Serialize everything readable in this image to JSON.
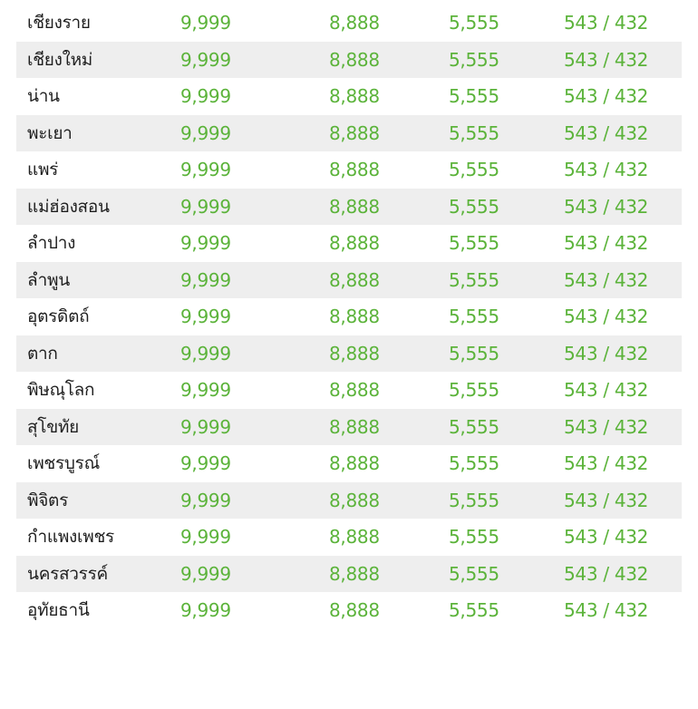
{
  "colors": {
    "name_text": "#1f1f1f",
    "number_text": "#5bb33a",
    "row_shade": "#eeeeee",
    "background": "#ffffff"
  },
  "rows": [
    {
      "name": "เชียงราย",
      "v1": "9,999",
      "v2": "8,888",
      "v3": "5,555",
      "v4": "543 / 432"
    },
    {
      "name": "เชียงใหม่",
      "v1": "9,999",
      "v2": "8,888",
      "v3": "5,555",
      "v4": "543 / 432"
    },
    {
      "name": "น่าน",
      "v1": "9,999",
      "v2": "8,888",
      "v3": "5,555",
      "v4": "543 / 432"
    },
    {
      "name": "พะเยา",
      "v1": "9,999",
      "v2": "8,888",
      "v3": "5,555",
      "v4": "543 / 432"
    },
    {
      "name": "แพร่",
      "v1": "9,999",
      "v2": "8,888",
      "v3": "5,555",
      "v4": "543 / 432"
    },
    {
      "name": "แม่ฮ่องสอน",
      "v1": "9,999",
      "v2": "8,888",
      "v3": "5,555",
      "v4": "543 / 432"
    },
    {
      "name": "ลำปาง",
      "v1": "9,999",
      "v2": "8,888",
      "v3": "5,555",
      "v4": "543 / 432"
    },
    {
      "name": "ลำพูน",
      "v1": "9,999",
      "v2": "8,888",
      "v3": "5,555",
      "v4": "543 / 432"
    },
    {
      "name": "อุตรดิตถ์",
      "v1": "9,999",
      "v2": "8,888",
      "v3": "5,555",
      "v4": "543 / 432"
    },
    {
      "name": "ตาก",
      "v1": "9,999",
      "v2": "8,888",
      "v3": "5,555",
      "v4": "543 / 432"
    },
    {
      "name": "พิษณุโลก",
      "v1": "9,999",
      "v2": "8,888",
      "v3": "5,555",
      "v4": "543 / 432"
    },
    {
      "name": "สุโขทัย",
      "v1": "9,999",
      "v2": "8,888",
      "v3": "5,555",
      "v4": "543 / 432"
    },
    {
      "name": "เพชรบูรณ์",
      "v1": "9,999",
      "v2": "8,888",
      "v3": "5,555",
      "v4": "543 / 432"
    },
    {
      "name": "พิจิตร",
      "v1": "9,999",
      "v2": "8,888",
      "v3": "5,555",
      "v4": "543 / 432"
    },
    {
      "name": "กำแพงเพชร",
      "v1": "9,999",
      "v2": "8,888",
      "v3": "5,555",
      "v4": "543 / 432"
    },
    {
      "name": "นครสวรรค์",
      "v1": "9,999",
      "v2": "8,888",
      "v3": "5,555",
      "v4": "543 / 432"
    },
    {
      "name": "อุทัยธานี",
      "v1": "9,999",
      "v2": "8,888",
      "v3": "5,555",
      "v4": "543 / 432"
    }
  ]
}
